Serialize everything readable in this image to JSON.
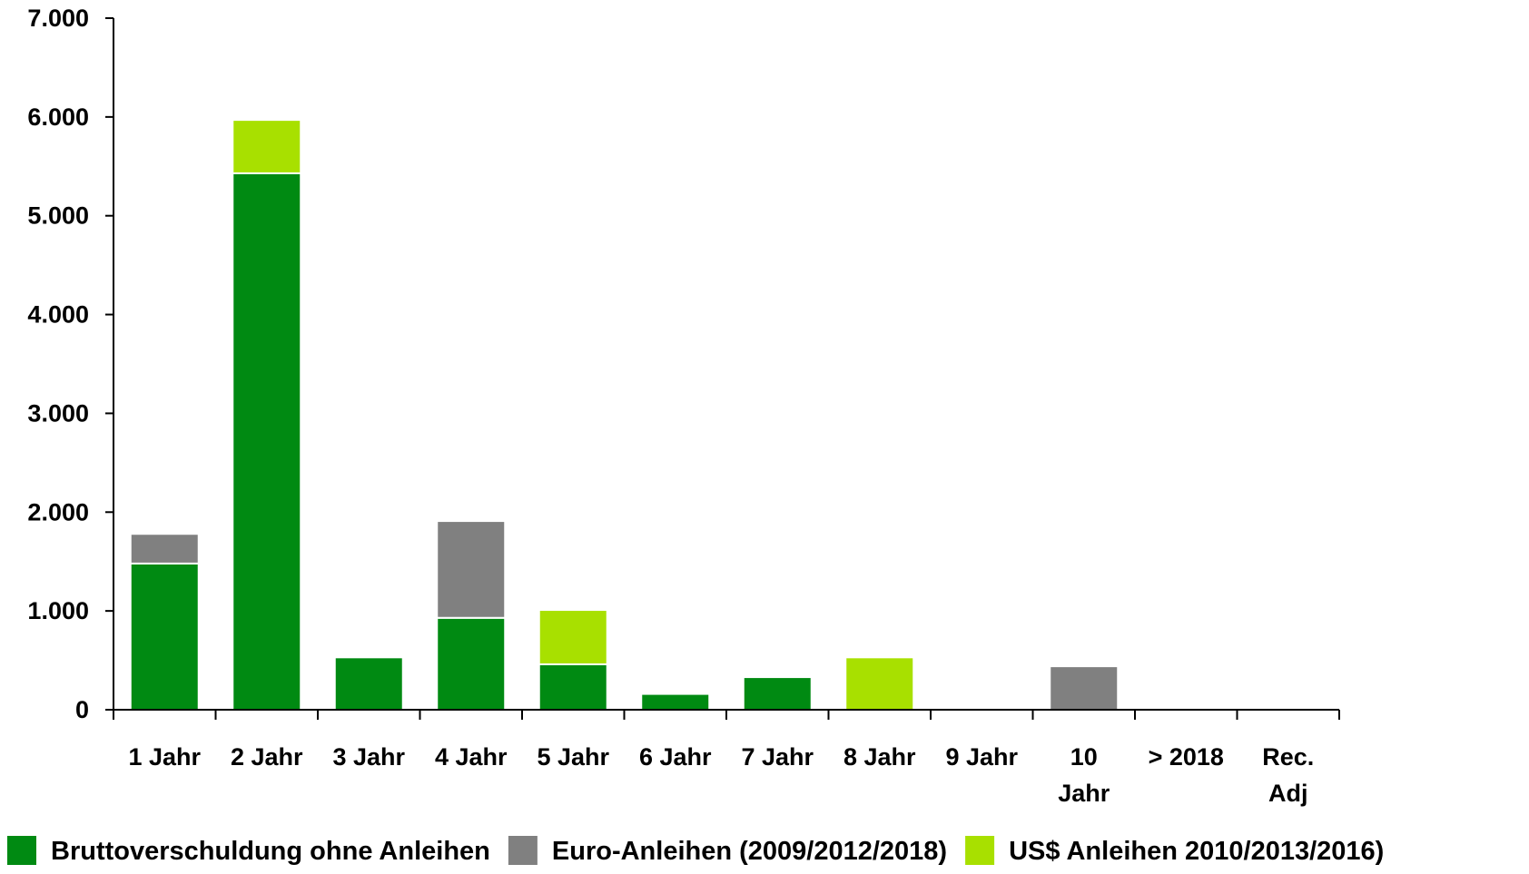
{
  "chart_data": {
    "type": "bar",
    "stacked": true,
    "categories": [
      [
        "1 Jahr"
      ],
      [
        "2 Jahr"
      ],
      [
        "3 Jahr"
      ],
      [
        "4 Jahr"
      ],
      [
        "5 Jahr"
      ],
      [
        "6 Jahr"
      ],
      [
        "7 Jahr"
      ],
      [
        "8 Jahr"
      ],
      [
        "9 Jahr"
      ],
      [
        "10",
        "Jahr"
      ],
      [
        "> 2018"
      ],
      [
        "Rec.",
        "Adj"
      ]
    ],
    "series": [
      {
        "name": "Bruttoverschuldung ohne Anleihen",
        "color": "#008a12",
        "values": [
          1480,
          5430,
          530,
          930,
          460,
          160,
          330,
          0,
          0,
          0,
          0,
          0
        ]
      },
      {
        "name": "Euro-Anleihen (2009/2012/2018)",
        "color": "#808080",
        "values": [
          300,
          0,
          0,
          980,
          0,
          0,
          0,
          0,
          0,
          440,
          0,
          0
        ]
      },
      {
        "name": "US$ Anleihen 2010/2013/2016)",
        "color": "#a8e000",
        "values": [
          0,
          540,
          0,
          0,
          550,
          0,
          0,
          530,
          0,
          0,
          0,
          0
        ]
      }
    ],
    "yticks": [
      "0",
      "1.000",
      "2.000",
      "3.000",
      "4.000",
      "5.000",
      "6.000",
      "7.000"
    ],
    "ylim": [
      0,
      7000
    ],
    "legend_position": "bottom",
    "grid": false
  }
}
